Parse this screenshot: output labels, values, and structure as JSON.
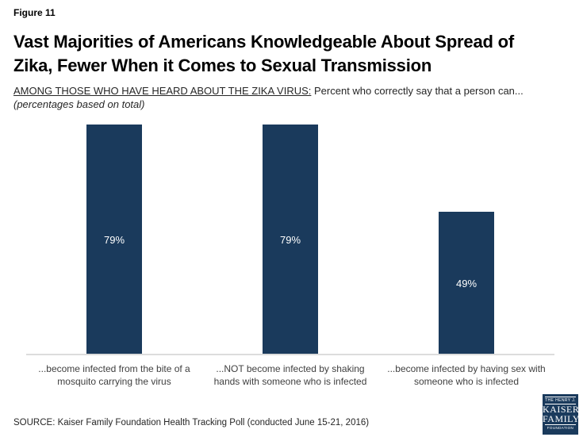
{
  "figure_label": "Figure 11",
  "title": {
    "line1": "Vast Majorities of Americans Knowledgeable About Spread of",
    "line2": "Zika, Fewer When it Comes to Sexual Transmission"
  },
  "subtitle": {
    "underlined": "AMONG THOSE WHO HAVE HEARD ABOUT THE ZIKA VIRUS:",
    "normal": " Percent who correctly say that a person can...",
    "italic": "(percentages based on total)"
  },
  "source": "SOURCE: Kaiser Family Foundation Health Tracking Poll (conducted June 15-21, 2016)",
  "logo": {
    "top": "THE HENRY J.",
    "name_line1": "KAISER",
    "name_line2": "FAMILY",
    "bottom": "FOUNDATION"
  },
  "colors": {
    "bar": "#1A3A5C",
    "axis_line": "#DCDCDC",
    "category_label_text": "#404040",
    "bar_value_text": "#FFFFFF",
    "logo_bg": "#1A3A5C"
  },
  "chart_data": {
    "type": "bar",
    "title": "Vast Majorities of Americans Knowledgeable About Spread of Zika, Fewer When it Comes to Sexual Transmission",
    "subtitle": "AMONG THOSE WHO HAVE HEARD ABOUT THE ZIKA VIRUS: Percent who correctly say that a person can...(percentages based on total)",
    "categories": [
      "...become infected from the bite of a mosquito carrying the virus",
      "...NOT become infected by shaking hands with someone who is infected",
      "...become infected by having sex with someone who is infected"
    ],
    "values": [
      79,
      79,
      49
    ],
    "value_labels": [
      "79%",
      "79%",
      "49%"
    ],
    "ylim": [
      0,
      100
    ],
    "grid": false,
    "legend": false,
    "value_label_position": "center-of-bar"
  }
}
